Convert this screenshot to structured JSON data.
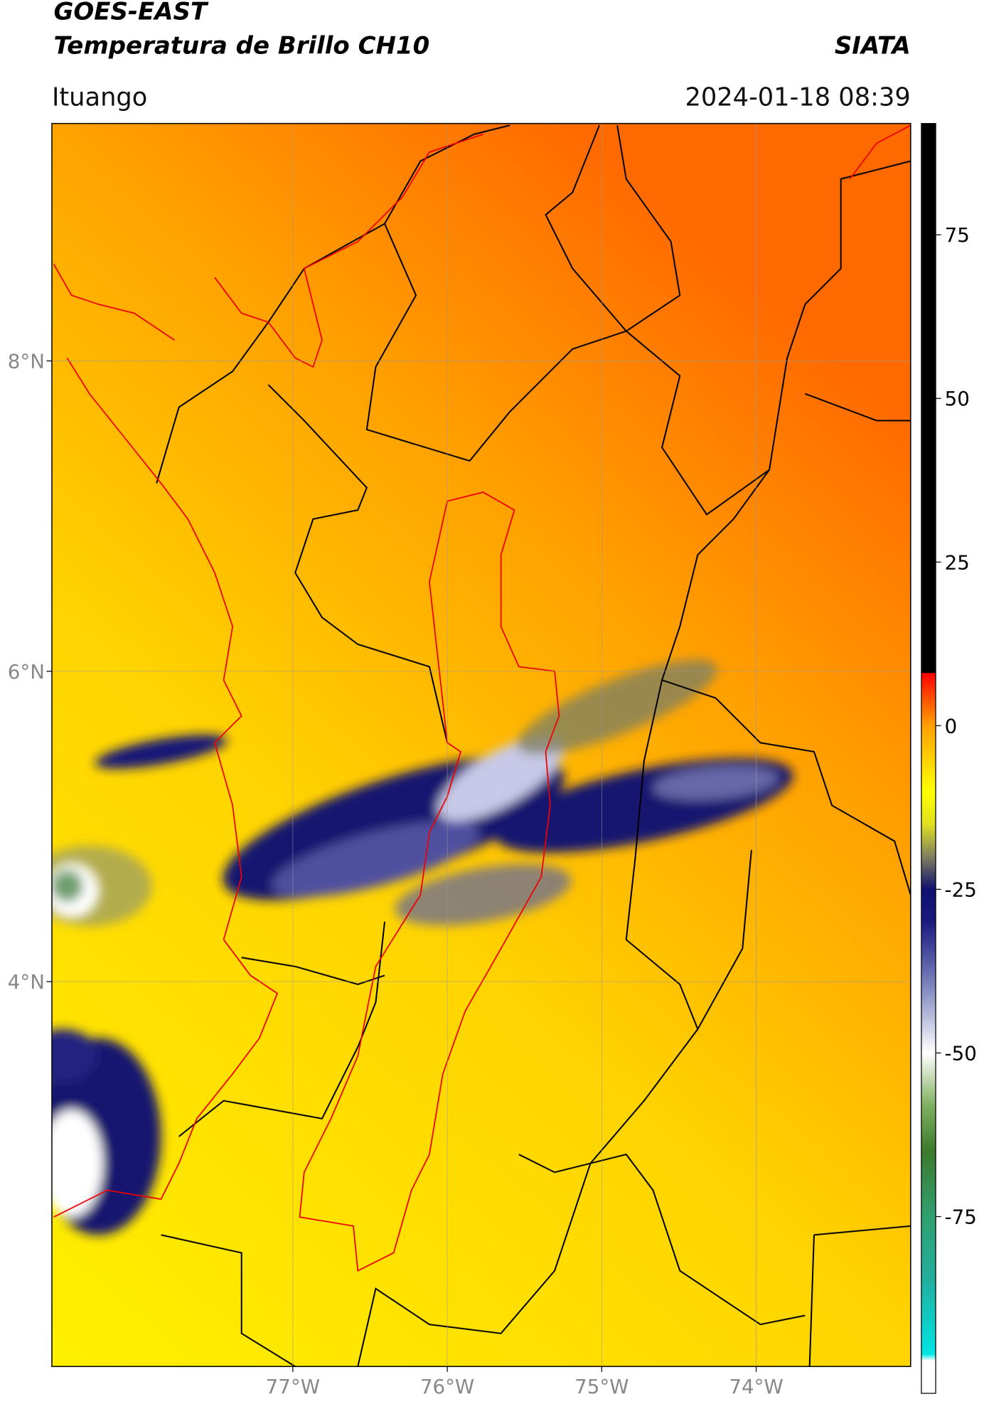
{
  "header": {
    "title": "GOES-EAST",
    "subtitle": "Temperatura de Brillo CH10",
    "brand": "SIATA",
    "location": "Ituango",
    "timestamp": "2024-01-18 08:39"
  },
  "map": {
    "xlim": [
      -78.56,
      -73.0
    ],
    "ylim": [
      1.52,
      9.53
    ],
    "xticks": [
      {
        "value": -77,
        "label": "77°W"
      },
      {
        "value": -76,
        "label": "76°W"
      },
      {
        "value": -75,
        "label": "75°W"
      },
      {
        "value": -74,
        "label": "74°W"
      }
    ],
    "yticks": [
      {
        "value": 8,
        "label": "8°N"
      },
      {
        "value": 6,
        "label": "6°N"
      },
      {
        "value": 4,
        "label": "4°N"
      }
    ],
    "grid": true
  },
  "colorbar": {
    "lim": [
      -102,
      92
    ],
    "ticks": [
      75,
      50,
      25,
      0,
      -25,
      -50,
      -75
    ],
    "stops": [
      {
        "value": -102,
        "color": "#ffffff"
      },
      {
        "value": -97,
        "color": "#ffffff"
      },
      {
        "value": -96,
        "color": "#00e5e5"
      },
      {
        "value": -85,
        "color": "#20b0a0"
      },
      {
        "value": -75,
        "color": "#30a070"
      },
      {
        "value": -65,
        "color": "#3c7a2c"
      },
      {
        "value": -58,
        "color": "#80b060"
      },
      {
        "value": -50,
        "color": "#ffffff"
      },
      {
        "value": -40,
        "color": "#8088c0"
      },
      {
        "value": -30,
        "color": "#1a1a80"
      },
      {
        "value": -25,
        "color": "#101070"
      },
      {
        "value": -20,
        "color": "#808060"
      },
      {
        "value": -15,
        "color": "#e0e020"
      },
      {
        "value": -10,
        "color": "#ffff00"
      },
      {
        "value": 0,
        "color": "#ffa000"
      },
      {
        "value": 5,
        "color": "#ff4000"
      },
      {
        "value": 8,
        "color": "#ff0000"
      },
      {
        "value": 8.1,
        "color": "#000000"
      },
      {
        "value": 92,
        "color": "#000000"
      }
    ]
  }
}
